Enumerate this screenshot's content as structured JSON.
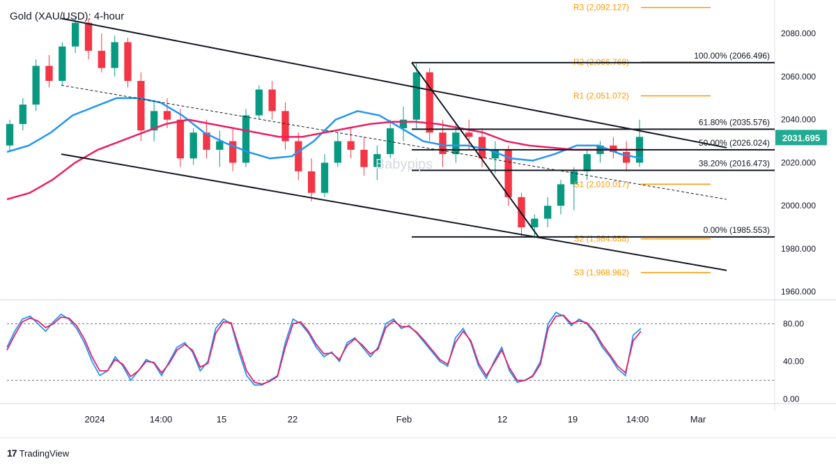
{
  "chart_title": "Gold (XAU/USD): 4-hour",
  "watermark": "Babypips",
  "footer": {
    "logo": "17",
    "brand": "TradingView"
  },
  "colors": {
    "up": "#089981",
    "down": "#f23645",
    "pivot": "#ff9800",
    "ma_fast": "#2196f3",
    "ma_slow": "#e91e63",
    "price_badge": "#22ab94",
    "line": "#131722",
    "axis_text": "#131722"
  },
  "chart_data": [
    {
      "type": "candlestick",
      "title": "Gold (XAU/USD): 4-hour",
      "y_axis": {
        "ticks": [
          2080,
          2060,
          2040,
          2020,
          2000,
          1980,
          1960
        ],
        "tick_labels": [
          "2080.000",
          "2060.000",
          "2040.000",
          "2020.000",
          "2000.000",
          "1980.000",
          "1960.000"
        ],
        "ylim": [
          1957,
          2093
        ]
      },
      "x_axis": {
        "tick_labels": [
          "2024",
          "14:00",
          "15",
          "22",
          "Feb",
          "12",
          "19",
          "14:00",
          "Mar"
        ]
      },
      "last_price": {
        "label": "2031.695",
        "value": 2031.695
      },
      "candles_approx": [
        {
          "o": 2028,
          "h": 2040,
          "l": 2025,
          "c": 2038
        },
        {
          "o": 2038,
          "h": 2050,
          "l": 2035,
          "c": 2047
        },
        {
          "o": 2047,
          "h": 2068,
          "l": 2044,
          "c": 2065
        },
        {
          "o": 2065,
          "h": 2070,
          "l": 2055,
          "c": 2058
        },
        {
          "o": 2058,
          "h": 2076,
          "l": 2056,
          "c": 2074
        },
        {
          "o": 2074,
          "h": 2088,
          "l": 2071,
          "c": 2085
        },
        {
          "o": 2085,
          "h": 2087,
          "l": 2068,
          "c": 2072
        },
        {
          "o": 2072,
          "h": 2080,
          "l": 2062,
          "c": 2064
        },
        {
          "o": 2064,
          "h": 2079,
          "l": 2060,
          "c": 2076
        },
        {
          "o": 2076,
          "h": 2078,
          "l": 2055,
          "c": 2058
        },
        {
          "o": 2058,
          "h": 2062,
          "l": 2030,
          "c": 2035
        },
        {
          "o": 2035,
          "h": 2048,
          "l": 2030,
          "c": 2044
        },
        {
          "o": 2044,
          "h": 2050,
          "l": 2036,
          "c": 2040
        },
        {
          "o": 2040,
          "h": 2045,
          "l": 2018,
          "c": 2022
        },
        {
          "o": 2022,
          "h": 2036,
          "l": 2019,
          "c": 2034
        },
        {
          "o": 2034,
          "h": 2040,
          "l": 2022,
          "c": 2026
        },
        {
          "o": 2026,
          "h": 2035,
          "l": 2018,
          "c": 2030
        },
        {
          "o": 2030,
          "h": 2036,
          "l": 2016,
          "c": 2020
        },
        {
          "o": 2020,
          "h": 2045,
          "l": 2018,
          "c": 2042
        },
        {
          "o": 2042,
          "h": 2056,
          "l": 2040,
          "c": 2054
        },
        {
          "o": 2054,
          "h": 2058,
          "l": 2040,
          "c": 2044
        },
        {
          "o": 2044,
          "h": 2048,
          "l": 2026,
          "c": 2030
        },
        {
          "o": 2030,
          "h": 2034,
          "l": 2012,
          "c": 2016
        },
        {
          "o": 2016,
          "h": 2022,
          "l": 2002,
          "c": 2006
        },
        {
          "o": 2006,
          "h": 2024,
          "l": 2004,
          "c": 2020
        },
        {
          "o": 2020,
          "h": 2034,
          "l": 2018,
          "c": 2030
        },
        {
          "o": 2030,
          "h": 2036,
          "l": 2022,
          "c": 2026
        },
        {
          "o": 2026,
          "h": 2032,
          "l": 2014,
          "c": 2018
        },
        {
          "o": 2018,
          "h": 2028,
          "l": 2012,
          "c": 2024
        },
        {
          "o": 2024,
          "h": 2040,
          "l": 2022,
          "c": 2036
        },
        {
          "o": 2036,
          "h": 2046,
          "l": 2030,
          "c": 2040
        },
        {
          "o": 2040,
          "h": 2066,
          "l": 2036,
          "c": 2062
        },
        {
          "o": 2062,
          "h": 2064,
          "l": 2030,
          "c": 2034
        },
        {
          "o": 2034,
          "h": 2040,
          "l": 2018,
          "c": 2024
        },
        {
          "o": 2024,
          "h": 2038,
          "l": 2020,
          "c": 2034
        },
        {
          "o": 2034,
          "h": 2040,
          "l": 2026,
          "c": 2032
        },
        {
          "o": 2032,
          "h": 2036,
          "l": 2018,
          "c": 2022
        },
        {
          "o": 2022,
          "h": 2030,
          "l": 2015,
          "c": 2026
        },
        {
          "o": 2026,
          "h": 2028,
          "l": 2000,
          "c": 2004
        },
        {
          "o": 2004,
          "h": 2006,
          "l": 1986,
          "c": 1990
        },
        {
          "o": 1990,
          "h": 1996,
          "l": 1985,
          "c": 1994
        },
        {
          "o": 1994,
          "h": 2004,
          "l": 1990,
          "c": 2000
        },
        {
          "o": 2000,
          "h": 2012,
          "l": 1996,
          "c": 2010
        },
        {
          "o": 2010,
          "h": 2018,
          "l": 1998,
          "c": 2016
        },
        {
          "o": 2016,
          "h": 2026,
          "l": 2012,
          "c": 2024
        },
        {
          "o": 2024,
          "h": 2030,
          "l": 2020,
          "c": 2028
        },
        {
          "o": 2028,
          "h": 2032,
          "l": 2022,
          "c": 2025
        },
        {
          "o": 2025,
          "h": 2030,
          "l": 2016,
          "c": 2020
        },
        {
          "o": 2020,
          "h": 2040,
          "l": 2018,
          "c": 2032
        }
      ],
      "moving_averages_approx": {
        "fast_blue": [
          2025,
          2028,
          2034,
          2042,
          2046,
          2050,
          2050,
          2048,
          2042,
          2034,
          2029,
          2025,
          2022,
          2023,
          2030,
          2040,
          2044,
          2042,
          2036,
          2030,
          2028,
          2028,
          2026,
          2022,
          2021,
          2024,
          2028,
          2028,
          2024,
          2022
        ],
        "slow_pink": [
          2003,
          2006,
          2012,
          2020,
          2026,
          2030,
          2034,
          2038,
          2040,
          2038,
          2036,
          2034,
          2032,
          2032,
          2034,
          2036,
          2038,
          2039,
          2039,
          2038,
          2036,
          2034,
          2030,
          2028,
          2027,
          2026,
          2026,
          2026,
          2026
        ]
      },
      "annotations": [
        {
          "label": "R3 (2,092.127)",
          "value": 2092.127
        },
        {
          "label": "R2 (2,066.768)",
          "value": 2066.768
        },
        {
          "label": "R1 (2,051.072)",
          "value": 2051.072
        },
        {
          "label": "S1 (2,010.017)",
          "value": 2010.017
        },
        {
          "label": "S2 (1,984.658)",
          "value": 1984.658
        },
        {
          "label": "S3 (1,968.962)",
          "value": 1968.962
        },
        {
          "label": "100.00% (2066.496)",
          "value": 2066.496
        },
        {
          "label": "61.80% (2035.576)",
          "value": 2035.576
        },
        {
          "label": "50.00% (2026.024)",
          "value": 2026.024
        },
        {
          "label": "38.20% (2016.473)",
          "value": 2016.473
        },
        {
          "label": "0.00% (1985.553)",
          "value": 1985.553
        }
      ]
    },
    {
      "type": "line",
      "y_axis": {
        "ticks": [
          80,
          40,
          0
        ],
        "tick_labels": [
          "80.00",
          "40.00",
          "0.00"
        ],
        "ylim": [
          -4,
          104
        ],
        "guides": [
          80,
          20
        ]
      },
      "series": [
        {
          "color": "blue",
          "values": [
            55,
            72,
            85,
            88,
            80,
            72,
            82,
            90,
            85,
            75,
            60,
            40,
            25,
            30,
            45,
            35,
            20,
            30,
            42,
            38,
            25,
            40,
            55,
            60,
            50,
            30,
            40,
            75,
            85,
            80,
            50,
            25,
            15,
            15,
            20,
            25,
            60,
            85,
            80,
            70,
            55,
            45,
            50,
            40,
            60,
            65,
            55,
            45,
            55,
            80,
            85,
            75,
            78,
            70,
            60,
            50,
            40,
            35,
            65,
            75,
            60,
            35,
            22,
            40,
            55,
            30,
            18,
            20,
            25,
            40,
            80,
            92,
            88,
            78,
            85,
            80,
            70,
            55,
            45,
            32,
            25,
            68,
            75
          ]
        },
        {
          "color": "magenta",
          "values": [
            52,
            68,
            82,
            86,
            83,
            76,
            80,
            87,
            86,
            78,
            64,
            45,
            30,
            30,
            42,
            37,
            24,
            30,
            40,
            39,
            28,
            38,
            52,
            58,
            52,
            34,
            38,
            70,
            82,
            81,
            55,
            30,
            18,
            16,
            19,
            24,
            55,
            80,
            82,
            72,
            58,
            48,
            49,
            42,
            57,
            64,
            57,
            48,
            53,
            76,
            83,
            77,
            77,
            71,
            62,
            52,
            42,
            37,
            60,
            72,
            62,
            38,
            25,
            38,
            52,
            33,
            20,
            20,
            24,
            37,
            75,
            88,
            89,
            80,
            83,
            81,
            72,
            58,
            47,
            35,
            28,
            62,
            72
          ]
        }
      ]
    }
  ]
}
